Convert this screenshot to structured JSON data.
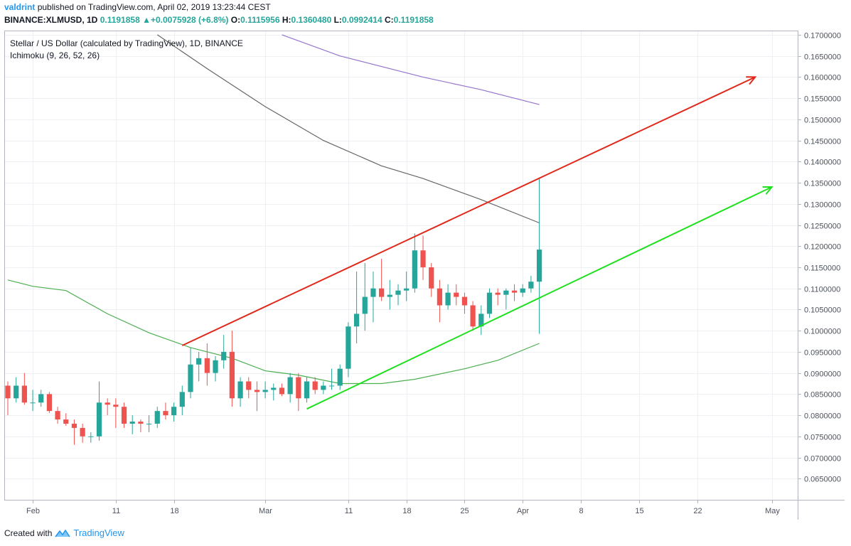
{
  "publish_line": {
    "user": "valdrint",
    "text": "published on TradingView.com, April 02, 2019 13:23:44 CEST"
  },
  "ohlc_line": {
    "symbol": "BINANCE:XLMUSD, 1D",
    "price": "0.1191858",
    "change": "+0.0075928 (+6.8%)",
    "o_label": "O:",
    "o": "0.1115956",
    "h_label": "H:",
    "h": "0.1360480",
    "l_label": "L:",
    "l": "0.0992414",
    "c_label": "C:",
    "c": "0.1191858"
  },
  "legend": {
    "title": "Stellar / US Dollar (calculated by TradingView), 1D, BINANCE",
    "indicator": "Ichimoku (9, 26, 52, 26)"
  },
  "footer": {
    "created_with": "Created with",
    "brand": "TradingView"
  },
  "colors": {
    "up": "#26a69a",
    "down": "#ef5350",
    "red_line": "#e0281b",
    "green_line": "#1fe01f",
    "ma_green": "#4caf50",
    "ma_grey": "#666666",
    "ma_purple": "#9575cd"
  },
  "chart_data": {
    "type": "candlestick",
    "symbol": "XLMUSD",
    "ylim": [
      0.06,
      0.171
    ],
    "y_ticks": [
      "0.0650000",
      "0.0700000",
      "0.0750000",
      "0.0800000",
      "0.0850000",
      "0.0900000",
      "0.0950000",
      "0.1000000",
      "0.1050000",
      "0.1100000",
      "0.1150000",
      "0.1200000",
      "0.1250000",
      "0.1300000",
      "0.1350000",
      "0.1400000",
      "0.1450000",
      "0.1500000",
      "0.1550000",
      "0.1600000",
      "0.1650000",
      "0.1700000"
    ],
    "x_ticks": [
      {
        "label": "Feb",
        "date": "2019-02-01"
      },
      {
        "label": "11",
        "date": "2019-02-11"
      },
      {
        "label": "18",
        "date": "2019-02-18"
      },
      {
        "label": "Mar",
        "date": "2019-03-01"
      },
      {
        "label": "11",
        "date": "2019-03-11"
      },
      {
        "label": "18",
        "date": "2019-03-18"
      },
      {
        "label": "25",
        "date": "2019-03-25"
      },
      {
        "label": "Apr",
        "date": "2019-04-01"
      },
      {
        "label": "8",
        "date": "2019-04-08"
      },
      {
        "label": "15",
        "date": "2019-04-15"
      },
      {
        "label": "22",
        "date": "2019-04-22"
      },
      {
        "label": "May",
        "date": "2019-05-01"
      }
    ],
    "x_range": [
      "2019-01-29",
      "2019-05-03"
    ],
    "candles": [
      {
        "date": "2019-01-29",
        "o": 0.087,
        "h": 0.088,
        "l": 0.08,
        "c": 0.084
      },
      {
        "date": "2019-01-30",
        "o": 0.084,
        "h": 0.089,
        "l": 0.083,
        "c": 0.087
      },
      {
        "date": "2019-01-31",
        "o": 0.087,
        "h": 0.09,
        "l": 0.0825,
        "c": 0.083
      },
      {
        "date": "2019-02-01",
        "o": 0.083,
        "h": 0.086,
        "l": 0.081,
        "c": 0.083
      },
      {
        "date": "2019-02-02",
        "o": 0.083,
        "h": 0.086,
        "l": 0.082,
        "c": 0.085
      },
      {
        "date": "2019-02-03",
        "o": 0.085,
        "h": 0.0855,
        "l": 0.0805,
        "c": 0.081
      },
      {
        "date": "2019-02-04",
        "o": 0.081,
        "h": 0.082,
        "l": 0.078,
        "c": 0.079
      },
      {
        "date": "2019-02-05",
        "o": 0.079,
        "h": 0.0805,
        "l": 0.0775,
        "c": 0.078
      },
      {
        "date": "2019-02-06",
        "o": 0.078,
        "h": 0.079,
        "l": 0.073,
        "c": 0.077
      },
      {
        "date": "2019-02-07",
        "o": 0.077,
        "h": 0.078,
        "l": 0.0735,
        "c": 0.075
      },
      {
        "date": "2019-02-08",
        "o": 0.075,
        "h": 0.076,
        "l": 0.0735,
        "c": 0.075
      },
      {
        "date": "2019-02-09",
        "o": 0.075,
        "h": 0.088,
        "l": 0.074,
        "c": 0.083
      },
      {
        "date": "2019-02-10",
        "o": 0.083,
        "h": 0.084,
        "l": 0.08,
        "c": 0.0825
      },
      {
        "date": "2019-02-11",
        "o": 0.0825,
        "h": 0.084,
        "l": 0.077,
        "c": 0.082
      },
      {
        "date": "2019-02-12",
        "o": 0.082,
        "h": 0.083,
        "l": 0.077,
        "c": 0.078
      },
      {
        "date": "2019-02-13",
        "o": 0.078,
        "h": 0.08,
        "l": 0.0755,
        "c": 0.0785
      },
      {
        "date": "2019-02-14",
        "o": 0.0785,
        "h": 0.079,
        "l": 0.076,
        "c": 0.078
      },
      {
        "date": "2019-02-15",
        "o": 0.078,
        "h": 0.08,
        "l": 0.076,
        "c": 0.078
      },
      {
        "date": "2019-02-16",
        "o": 0.078,
        "h": 0.082,
        "l": 0.077,
        "c": 0.081
      },
      {
        "date": "2019-02-17",
        "o": 0.081,
        "h": 0.083,
        "l": 0.079,
        "c": 0.08
      },
      {
        "date": "2019-02-18",
        "o": 0.08,
        "h": 0.083,
        "l": 0.0785,
        "c": 0.082
      },
      {
        "date": "2019-02-19",
        "o": 0.082,
        "h": 0.087,
        "l": 0.08,
        "c": 0.0855
      },
      {
        "date": "2019-02-20",
        "o": 0.0855,
        "h": 0.096,
        "l": 0.084,
        "c": 0.092
      },
      {
        "date": "2019-02-21",
        "o": 0.092,
        "h": 0.095,
        "l": 0.088,
        "c": 0.0935
      },
      {
        "date": "2019-02-22",
        "o": 0.0935,
        "h": 0.097,
        "l": 0.087,
        "c": 0.09
      },
      {
        "date": "2019-02-23",
        "o": 0.09,
        "h": 0.094,
        "l": 0.088,
        "c": 0.093
      },
      {
        "date": "2019-02-24",
        "o": 0.093,
        "h": 0.099,
        "l": 0.091,
        "c": 0.095
      },
      {
        "date": "2019-02-25",
        "o": 0.095,
        "h": 0.1,
        "l": 0.082,
        "c": 0.084
      },
      {
        "date": "2019-02-26",
        "o": 0.084,
        "h": 0.089,
        "l": 0.082,
        "c": 0.088
      },
      {
        "date": "2019-02-27",
        "o": 0.088,
        "h": 0.089,
        "l": 0.084,
        "c": 0.086
      },
      {
        "date": "2019-02-28",
        "o": 0.086,
        "h": 0.088,
        "l": 0.081,
        "c": 0.0855
      },
      {
        "date": "2019-03-01",
        "o": 0.0855,
        "h": 0.088,
        "l": 0.084,
        "c": 0.086
      },
      {
        "date": "2019-03-02",
        "o": 0.086,
        "h": 0.0875,
        "l": 0.0835,
        "c": 0.0865
      },
      {
        "date": "2019-03-03",
        "o": 0.0865,
        "h": 0.0875,
        "l": 0.0845,
        "c": 0.085
      },
      {
        "date": "2019-03-04",
        "o": 0.085,
        "h": 0.09,
        "l": 0.083,
        "c": 0.089
      },
      {
        "date": "2019-03-05",
        "o": 0.089,
        "h": 0.09,
        "l": 0.081,
        "c": 0.084
      },
      {
        "date": "2019-03-06",
        "o": 0.084,
        "h": 0.089,
        "l": 0.083,
        "c": 0.088
      },
      {
        "date": "2019-03-07",
        "o": 0.088,
        "h": 0.089,
        "l": 0.085,
        "c": 0.086
      },
      {
        "date": "2019-03-08",
        "o": 0.086,
        "h": 0.088,
        "l": 0.085,
        "c": 0.087
      },
      {
        "date": "2019-03-09",
        "o": 0.087,
        "h": 0.091,
        "l": 0.086,
        "c": 0.087
      },
      {
        "date": "2019-03-10",
        "o": 0.087,
        "h": 0.092,
        "l": 0.086,
        "c": 0.091
      },
      {
        "date": "2019-03-11",
        "o": 0.091,
        "h": 0.102,
        "l": 0.089,
        "c": 0.101
      },
      {
        "date": "2019-03-12",
        "o": 0.101,
        "h": 0.114,
        "l": 0.097,
        "c": 0.104
      },
      {
        "date": "2019-03-13",
        "o": 0.104,
        "h": 0.116,
        "l": 0.1,
        "c": 0.108
      },
      {
        "date": "2019-03-14",
        "o": 0.108,
        "h": 0.114,
        "l": 0.102,
        "c": 0.11
      },
      {
        "date": "2019-03-15",
        "o": 0.11,
        "h": 0.117,
        "l": 0.107,
        "c": 0.108
      },
      {
        "date": "2019-03-16",
        "o": 0.108,
        "h": 0.112,
        "l": 0.105,
        "c": 0.1085
      },
      {
        "date": "2019-03-17",
        "o": 0.1085,
        "h": 0.111,
        "l": 0.106,
        "c": 0.1095
      },
      {
        "date": "2019-03-18",
        "o": 0.1095,
        "h": 0.114,
        "l": 0.107,
        "c": 0.11
      },
      {
        "date": "2019-03-19",
        "o": 0.11,
        "h": 0.123,
        "l": 0.109,
        "c": 0.119
      },
      {
        "date": "2019-03-20",
        "o": 0.119,
        "h": 0.1225,
        "l": 0.112,
        "c": 0.115
      },
      {
        "date": "2019-03-21",
        "o": 0.115,
        "h": 0.116,
        "l": 0.108,
        "c": 0.11
      },
      {
        "date": "2019-03-22",
        "o": 0.11,
        "h": 0.112,
        "l": 0.102,
        "c": 0.106
      },
      {
        "date": "2019-03-23",
        "o": 0.106,
        "h": 0.111,
        "l": 0.105,
        "c": 0.109
      },
      {
        "date": "2019-03-24",
        "o": 0.109,
        "h": 0.111,
        "l": 0.106,
        "c": 0.108
      },
      {
        "date": "2019-03-25",
        "o": 0.108,
        "h": 0.109,
        "l": 0.104,
        "c": 0.106
      },
      {
        "date": "2019-03-26",
        "o": 0.106,
        "h": 0.107,
        "l": 0.1,
        "c": 0.101
      },
      {
        "date": "2019-03-27",
        "o": 0.101,
        "h": 0.106,
        "l": 0.099,
        "c": 0.104
      },
      {
        "date": "2019-03-28",
        "o": 0.104,
        "h": 0.11,
        "l": 0.103,
        "c": 0.109
      },
      {
        "date": "2019-03-29",
        "o": 0.109,
        "h": 0.11,
        "l": 0.106,
        "c": 0.1085
      },
      {
        "date": "2019-03-30",
        "o": 0.1085,
        "h": 0.11,
        "l": 0.105,
        "c": 0.1095
      },
      {
        "date": "2019-03-31",
        "o": 0.1095,
        "h": 0.111,
        "l": 0.107,
        "c": 0.109
      },
      {
        "date": "2019-04-01",
        "o": 0.109,
        "h": 0.111,
        "l": 0.108,
        "c": 0.11
      },
      {
        "date": "2019-04-02",
        "o": 0.11,
        "h": 0.113,
        "l": 0.109,
        "c": 0.1116
      },
      {
        "date": "2019-04-03",
        "o": 0.1115956,
        "h": 0.136048,
        "l": 0.0992414,
        "c": 0.1191858
      }
    ],
    "indicators": [
      {
        "kind": "ichimoku-lagging-green",
        "color": "#4caf50",
        "points": [
          [
            "2019-01-29",
            0.112
          ],
          [
            "2019-02-01",
            0.1105
          ],
          [
            "2019-02-05",
            0.1095
          ],
          [
            "2019-02-10",
            0.104
          ],
          [
            "2019-02-15",
            0.0995
          ],
          [
            "2019-02-20",
            0.096
          ],
          [
            "2019-02-25",
            0.0935
          ],
          [
            "2019-03-01",
            0.0905
          ],
          [
            "2019-03-05",
            0.0895
          ],
          [
            "2019-03-10",
            0.0875
          ],
          [
            "2019-03-15",
            0.0875
          ],
          [
            "2019-03-19",
            0.0885
          ],
          [
            "2019-03-25",
            0.091
          ],
          [
            "2019-03-29",
            0.093
          ],
          [
            "2019-04-03",
            0.097
          ]
        ]
      },
      {
        "kind": "ichimoku-line-grey",
        "color": "#666666",
        "points": [
          [
            "2019-02-16",
            0.17
          ],
          [
            "2019-02-22",
            0.162
          ],
          [
            "2019-03-01",
            0.153
          ],
          [
            "2019-03-08",
            0.145
          ],
          [
            "2019-03-15",
            0.139
          ],
          [
            "2019-03-20",
            0.136
          ],
          [
            "2019-03-27",
            0.131
          ],
          [
            "2019-04-03",
            0.1255
          ]
        ]
      },
      {
        "kind": "ichimoku-line-purple",
        "color": "#9575cd",
        "points": [
          [
            "2019-03-03",
            0.17
          ],
          [
            "2019-03-10",
            0.165
          ],
          [
            "2019-03-20",
            0.16
          ],
          [
            "2019-03-27",
            0.157
          ],
          [
            "2019-04-03",
            0.1535
          ]
        ]
      }
    ],
    "drawings": [
      {
        "kind": "trend-arrow",
        "color": "#e0281b",
        "from": [
          "2019-02-19",
          0.0965
        ],
        "to": [
          "2019-04-29",
          0.16
        ]
      },
      {
        "kind": "trend-arrow",
        "color": "#1fe01f",
        "from": [
          "2019-03-06",
          0.0815
        ],
        "to": [
          "2019-05-01",
          0.134
        ]
      }
    ]
  }
}
